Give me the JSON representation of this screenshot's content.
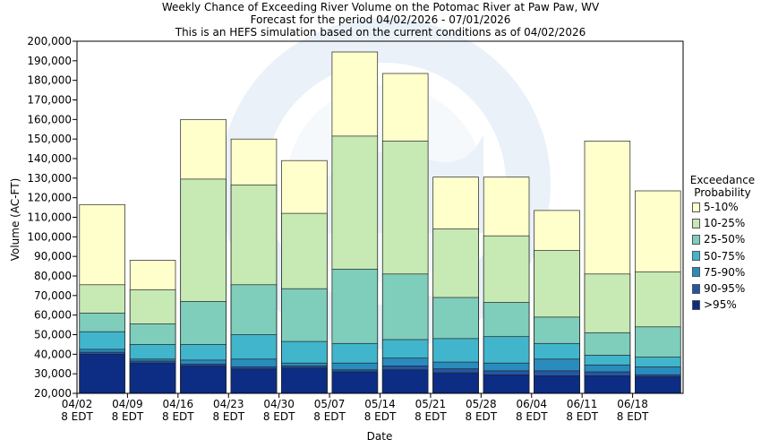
{
  "title": {
    "line1": "Weekly Chance of Exceeding River Volume on the Potomac River at Paw Paw, WV",
    "line2": "Forecast for the period 04/02/2026 - 07/01/2026",
    "line3": "This is an HEFS simulation based on the current conditions as of 04/02/2026"
  },
  "legend": {
    "title_line1": "Exceedance",
    "title_line2": "Probability"
  },
  "chart_data": {
    "type": "bar",
    "stacked": true,
    "xlabel": "Date",
    "ylabel": "Volume (AC-FT)",
    "ylim": [
      20000,
      200000
    ],
    "ytick_step": 10000,
    "grid": false,
    "legend_position": "right",
    "categories": [
      "04/02 8 EDT",
      "04/09 8 EDT",
      "04/16 8 EDT",
      "04/23 8 EDT",
      "04/30 8 EDT",
      "05/07 8 EDT",
      "05/14 8 EDT",
      "05/21 8 EDT",
      "05/28 8 EDT",
      "06/04 8 EDT",
      "06/11 8 EDT",
      "06/18 8 EDT"
    ],
    "x_tick_labels": [
      [
        "04/02",
        "8 EDT"
      ],
      [
        "04/09",
        "8 EDT"
      ],
      [
        "04/16",
        "8 EDT"
      ],
      [
        "04/23",
        "8 EDT"
      ],
      [
        "04/30",
        "8 EDT"
      ],
      [
        "05/07",
        "8 EDT"
      ],
      [
        "05/14",
        "8 EDT"
      ],
      [
        "05/21",
        "8 EDT"
      ],
      [
        "05/28",
        "8 EDT"
      ],
      [
        "06/04",
        "8 EDT"
      ],
      [
        "06/11",
        "8 EDT"
      ],
      [
        "06/18",
        "8 EDT"
      ]
    ],
    "boundaries": [
      {
        "label": ">95%",
        "color": "#0c2d83",
        "values": [
          40000,
          35500,
          34000,
          32500,
          33000,
          31000,
          32000,
          30500,
          29500,
          29000,
          29000,
          28500
        ]
      },
      {
        "label": "90-95%",
        "color": "#2456a4",
        "values": [
          41000,
          36500,
          35000,
          33500,
          34000,
          32000,
          34000,
          32500,
          31500,
          31500,
          31000,
          29500
        ]
      },
      {
        "label": "75-90%",
        "color": "#2a8cbd",
        "values": [
          42500,
          37500,
          37000,
          37500,
          35500,
          35500,
          38000,
          36000,
          35500,
          37500,
          34500,
          33500
        ]
      },
      {
        "label": "50-75%",
        "color": "#41b5cc",
        "values": [
          51500,
          45000,
          45000,
          50000,
          46500,
          45500,
          47500,
          48000,
          49000,
          45500,
          39500,
          38500
        ]
      },
      {
        "label": "25-50%",
        "color": "#7fcdbb",
        "values": [
          61000,
          55500,
          67000,
          75500,
          73500,
          83500,
          81000,
          69000,
          66500,
          59000,
          51000,
          54000
        ]
      },
      {
        "label": "10-25%",
        "color": "#c7e9b4",
        "values": [
          75500,
          73000,
          129500,
          126500,
          112000,
          151500,
          149000,
          104000,
          100500,
          93000,
          81000,
          82000
        ]
      },
      {
        "label": "5-10%",
        "color": "#ffffcc",
        "values": [
          116500,
          88000,
          160000,
          150000,
          139000,
          194500,
          183500,
          130500,
          130500,
          113500,
          149000,
          123500
        ]
      }
    ]
  }
}
